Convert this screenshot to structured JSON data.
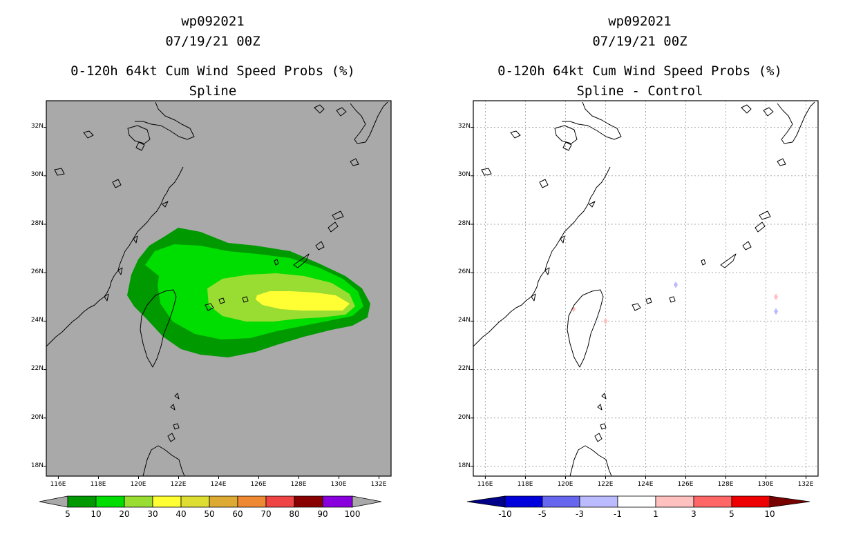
{
  "panels": [
    {
      "id": "left",
      "title_lines": [
        "wp092021",
        "07/19/21 00Z",
        "0-120h 64kt Cum Wind Speed Probs (%)",
        "Spline"
      ],
      "background_color": "#a9a9a9",
      "gridlines": false,
      "lon_ticks": [
        "116E",
        "118E",
        "120E",
        "122E",
        "124E",
        "126E",
        "128E",
        "130E",
        "132E"
      ],
      "lat_ticks": [
        "32N",
        "30N",
        "28N",
        "26N",
        "24N",
        "22N",
        "20N",
        "18N"
      ],
      "colorbar": {
        "labels": [
          "5",
          "10",
          "20",
          "30",
          "40",
          "50",
          "60",
          "70",
          "80",
          "90",
          "100"
        ],
        "colors": [
          "#009900",
          "#00dd00",
          "#99dd33",
          "#ffff33",
          "#dddd33",
          "#ddaa33",
          "#ee8833",
          "#ee4444",
          "#880000",
          "#8800dd"
        ],
        "left_arrow_color": "#a9a9a9",
        "right_arrow_color": "#a9a9a9"
      },
      "probability_contours_pct": [
        5,
        10,
        20,
        30
      ]
    },
    {
      "id": "right",
      "title_lines": [
        "wp092021",
        "07/19/21 00Z",
        "0-120h 64kt Cum Wind Speed Probs (%)",
        "Spline - Control"
      ],
      "background_color": "#ffffff",
      "gridlines": true,
      "lon_ticks": [
        "116E",
        "118E",
        "120E",
        "122E",
        "124E",
        "126E",
        "128E",
        "130E",
        "132E"
      ],
      "lat_ticks": [
        "32N",
        "30N",
        "28N",
        "26N",
        "24N",
        "22N",
        "20N",
        "18N"
      ],
      "colorbar": {
        "labels": [
          "-10",
          "-5",
          "-3",
          "-1",
          "1",
          "3",
          "5",
          "10"
        ],
        "colors": [
          "#0000dd",
          "#6666ee",
          "#bbbbff",
          "#ffffff",
          "#ffc0c0",
          "#ff6666",
          "#ee0000"
        ],
        "left_arrow_color": "#000088",
        "right_arrow_color": "#770000"
      },
      "difference_marks": [
        {
          "lon": 125.5,
          "lat": 25.5,
          "sign": "negative"
        },
        {
          "lon": 130.5,
          "lat": 24.4,
          "sign": "negative"
        },
        {
          "lon": 130.5,
          "lat": 25.0,
          "sign": "positive"
        },
        {
          "lon": 122.0,
          "lat": 24.0,
          "sign": "positive"
        },
        {
          "lon": 120.4,
          "lat": 24.5,
          "sign": "positive"
        }
      ]
    }
  ]
}
